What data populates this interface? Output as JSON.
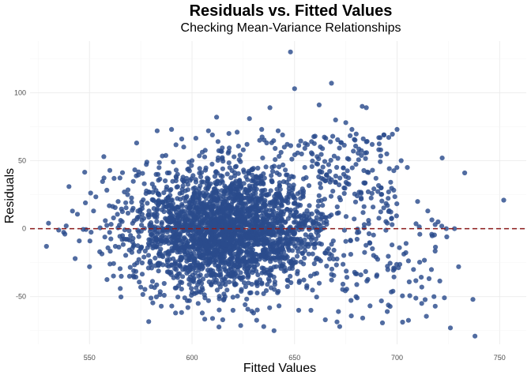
{
  "chart_data": {
    "type": "scatter",
    "title": "Residuals vs. Fitted Values",
    "subtitle": "Checking Mean-Variance Relationships",
    "xlabel": "Fitted Values",
    "ylabel": "Residuals",
    "xlim": [
      521,
      763
    ],
    "ylim": [
      -85,
      138
    ],
    "x_ticks": [
      550,
      600,
      650,
      700,
      750
    ],
    "y_ticks": [
      -50,
      0,
      50,
      100
    ],
    "reference_line": {
      "y": 0,
      "style": "dashed",
      "color": "#8b1a1a"
    },
    "point_color": "#2b4c8c",
    "grid": true,
    "legend": "none",
    "sample_points": [
      [
        529,
        -13
      ],
      [
        530,
        4
      ],
      [
        535,
        -1
      ],
      [
        538,
        -4
      ],
      [
        540,
        31
      ],
      [
        543,
        -22
      ],
      [
        545,
        -9
      ],
      [
        548,
        19
      ],
      [
        550,
        -28
      ],
      [
        552,
        13
      ],
      [
        555,
        -17
      ],
      [
        557,
        53
      ],
      [
        560,
        -26
      ],
      [
        562,
        37
      ],
      [
        565,
        -44
      ],
      [
        567,
        27
      ],
      [
        570,
        -5
      ],
      [
        573,
        63
      ],
      [
        575,
        -43
      ],
      [
        578,
        49
      ],
      [
        580,
        -51
      ],
      [
        583,
        72
      ],
      [
        585,
        -57
      ],
      [
        588,
        41
      ],
      [
        590,
        73
      ],
      [
        592,
        -62
      ],
      [
        595,
        66
      ],
      [
        598,
        -58
      ],
      [
        600,
        50
      ],
      [
        603,
        -55
      ],
      [
        605,
        -62
      ],
      [
        608,
        72
      ],
      [
        610,
        -66
      ],
      [
        612,
        82
      ],
      [
        615,
        -67
      ],
      [
        618,
        70
      ],
      [
        620,
        -60
      ],
      [
        622,
        71
      ],
      [
        625,
        58
      ],
      [
        628,
        81
      ],
      [
        630,
        -62
      ],
      [
        633,
        65
      ],
      [
        635,
        -72
      ],
      [
        638,
        89
      ],
      [
        640,
        -75
      ],
      [
        642,
        72
      ],
      [
        645,
        60
      ],
      [
        648,
        130
      ],
      [
        650,
        103
      ],
      [
        652,
        -60
      ],
      [
        655,
        45
      ],
      [
        658,
        -60
      ],
      [
        660,
        68
      ],
      [
        662,
        91
      ],
      [
        665,
        -67
      ],
      [
        668,
        107
      ],
      [
        670,
        80
      ],
      [
        672,
        -72
      ],
      [
        675,
        78
      ],
      [
        678,
        73
      ],
      [
        680,
        -50
      ],
      [
        683,
        90
      ],
      [
        685,
        89
      ],
      [
        688,
        43
      ],
      [
        690,
        -35
      ],
      [
        692,
        58
      ],
      [
        695,
        55
      ],
      [
        698,
        -46
      ],
      [
        700,
        73
      ],
      [
        702,
        50
      ],
      [
        705,
        45
      ],
      [
        708,
        -30
      ],
      [
        710,
        20
      ],
      [
        712,
        -55
      ],
      [
        715,
        13
      ],
      [
        718,
        -50
      ],
      [
        720,
        5
      ],
      [
        722,
        52
      ],
      [
        724,
        0
      ],
      [
        726,
        -73
      ],
      [
        728,
        0
      ],
      [
        730,
        -28
      ],
      [
        733,
        41
      ],
      [
        737,
        -52
      ],
      [
        738,
        -79
      ],
      [
        752,
        21
      ]
    ]
  }
}
